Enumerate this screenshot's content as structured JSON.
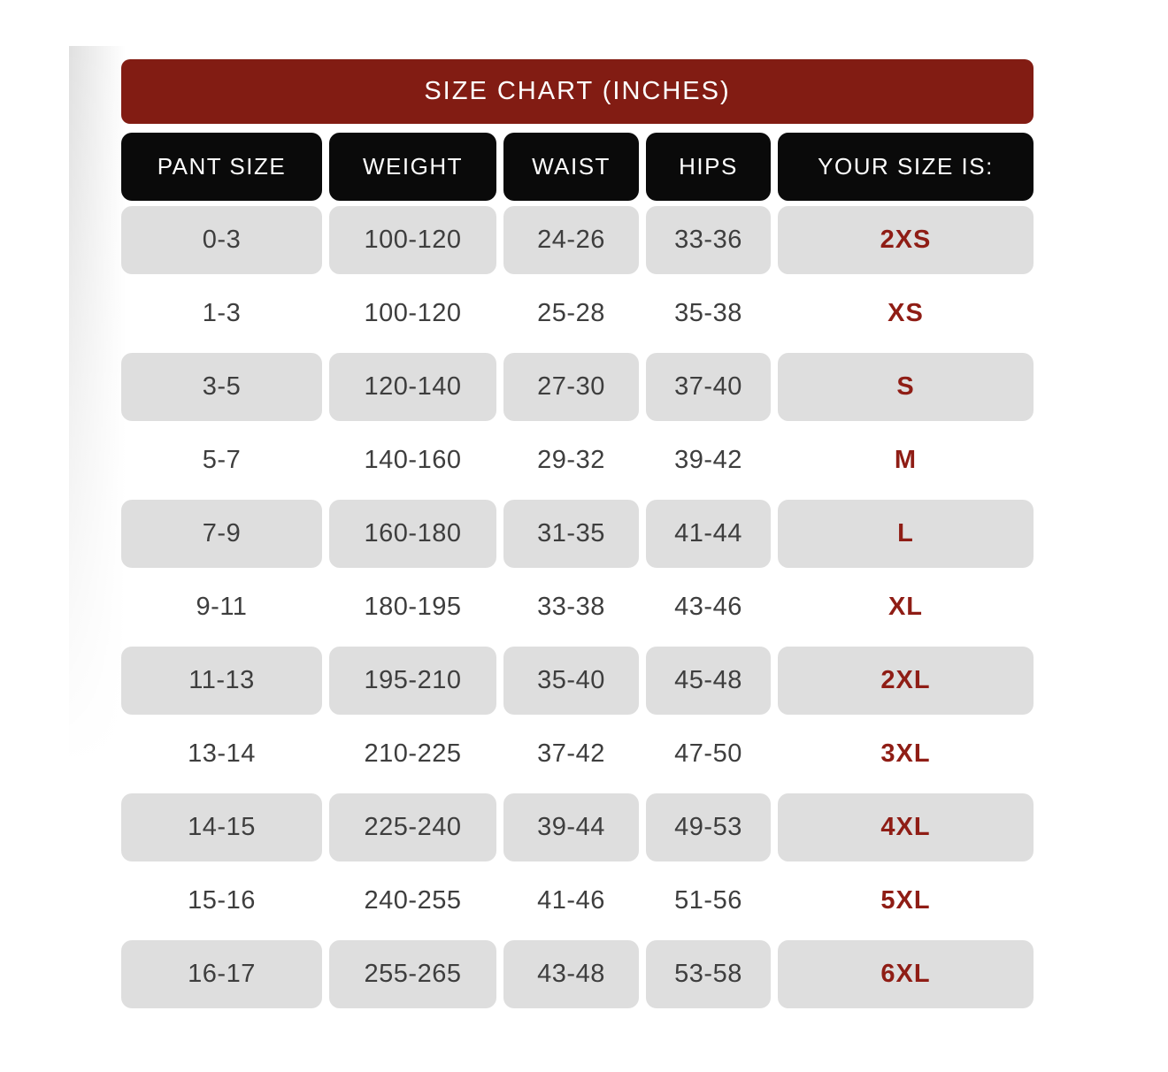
{
  "title": "SIZE CHART (INCHES)",
  "chart_data": {
    "type": "table",
    "title": "SIZE CHART (INCHES)",
    "columns": [
      "PANT SIZE",
      "WEIGHT",
      "WAIST",
      "HIPS",
      "YOUR SIZE IS:"
    ],
    "rows": [
      [
        "0-3",
        "100-120",
        "24-26",
        "33-36",
        "2XS"
      ],
      [
        "1-3",
        "100-120",
        "25-28",
        "35-38",
        "XS"
      ],
      [
        "3-5",
        "120-140",
        "27-30",
        "37-40",
        "S"
      ],
      [
        "5-7",
        "140-160",
        "29-32",
        "39-42",
        "M"
      ],
      [
        "7-9",
        "160-180",
        "31-35",
        "41-44",
        "L"
      ],
      [
        "9-11",
        "180-195",
        "33-38",
        "43-46",
        "XL"
      ],
      [
        "11-13",
        "195-210",
        "35-40",
        "45-48",
        "2XL"
      ],
      [
        "13-14",
        "210-225",
        "37-42",
        "47-50",
        "3XL"
      ],
      [
        "14-15",
        "225-240",
        "39-44",
        "49-53",
        "4XL"
      ],
      [
        "15-16",
        "240-255",
        "41-46",
        "51-56",
        "5XL"
      ],
      [
        "16-17",
        "255-265",
        "43-48",
        "53-58",
        "6XL"
      ]
    ],
    "layout": {
      "striped": true,
      "first_data_row_shaded": true,
      "units": "inches (waist/hips), pounds (weight implied)"
    }
  },
  "colors": {
    "banner_red": "#821C13",
    "size_text_red": "#8F1D15",
    "header_black": "#0A0A0A",
    "row_gray": "#DEDEDE",
    "cell_text": "#3E3E3E",
    "header_text": "#FFFFFF"
  }
}
